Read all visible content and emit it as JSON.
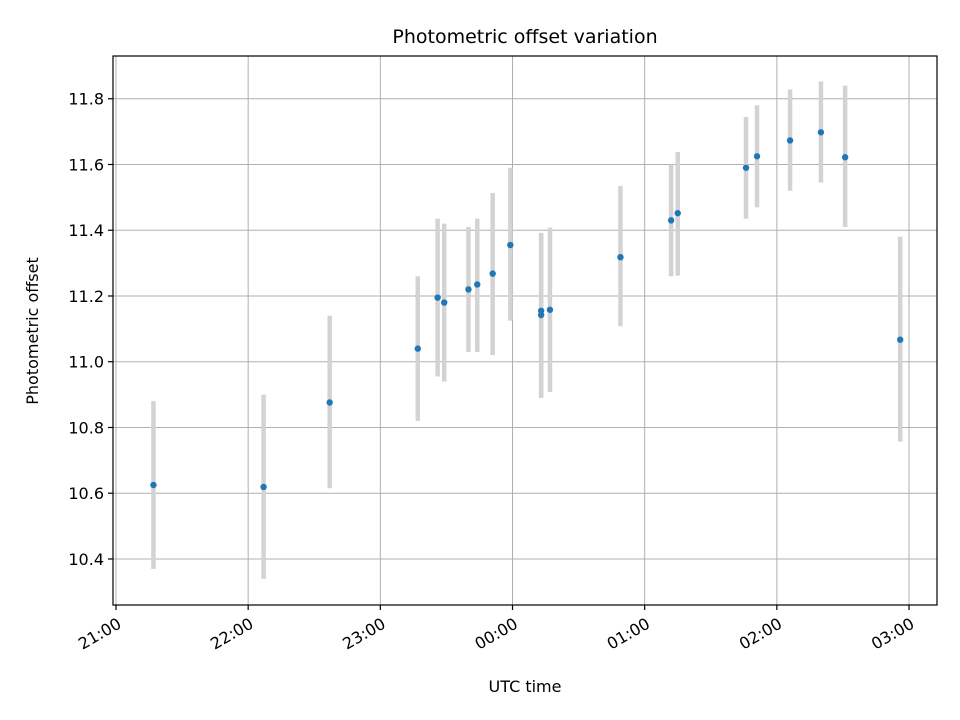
{
  "chart_data": {
    "type": "scatter",
    "title": "Photometric offset variation",
    "xlabel": "UTC time",
    "ylabel": "Photometric offset",
    "x_ticks": [
      "21:00",
      "22:00",
      "23:00",
      "00:00",
      "01:00",
      "02:00",
      "03:00"
    ],
    "y_ticks": [
      "10.4",
      "10.6",
      "10.8",
      "11.0",
      "11.2",
      "11.4",
      "11.6",
      "11.8"
    ],
    "ylim": [
      10.26,
      11.93
    ],
    "grid": true,
    "colors": {
      "point": "#1f77b4",
      "errorbar": "#d3d3d3",
      "grid": "#b0b0b0"
    },
    "series": [
      {
        "x": [
          "21:17",
          "22:07",
          "22:37",
          "23:17",
          "23:26",
          "23:29",
          "23:40",
          "23:44",
          "23:51",
          "23:59",
          "00:13",
          "00:13",
          "00:17",
          "00:49",
          "01:12",
          "01:15",
          "01:46",
          "01:51",
          "02:06",
          "02:20",
          "02:31",
          "02:56"
        ],
        "y": [
          10.625,
          10.619,
          10.876,
          11.04,
          11.195,
          11.18,
          11.22,
          11.235,
          11.268,
          11.355,
          11.155,
          11.142,
          11.158,
          11.318,
          11.43,
          11.452,
          11.59,
          11.625,
          11.673,
          11.698,
          11.622,
          11.067
        ],
        "yerr_low": [
          0.255,
          0.279,
          0.261,
          0.22,
          0.24,
          0.24,
          0.19,
          0.205,
          0.248,
          0.23,
          0.265,
          0.25,
          0.25,
          0.21,
          0.17,
          0.19,
          0.155,
          0.155,
          0.153,
          0.153,
          0.212,
          0.31
        ],
        "yerr_high": [
          0.255,
          0.281,
          0.264,
          0.22,
          0.24,
          0.24,
          0.19,
          0.2,
          0.245,
          0.235,
          0.235,
          0.25,
          0.25,
          0.217,
          0.17,
          0.186,
          0.155,
          0.155,
          0.155,
          0.155,
          0.218,
          0.313
        ]
      }
    ]
  }
}
